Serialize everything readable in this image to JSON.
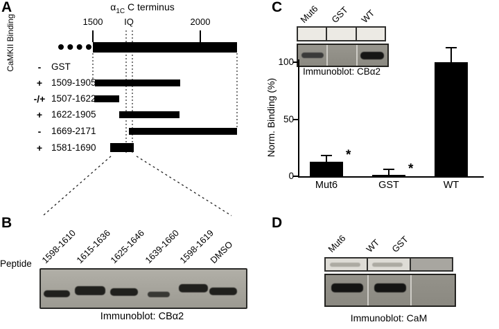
{
  "panelA": {
    "label": "A",
    "title": {
      "alpha": "α",
      "sub": "1C",
      "rest": " C terminus"
    },
    "side_label": "CaMKII Binding",
    "scale": {
      "left_tick": "1500",
      "iq_label": "IQ",
      "right_tick": "2000"
    },
    "constructs": [
      {
        "binding": "-",
        "name": "GST"
      },
      {
        "binding": "+",
        "name": "1509-1905",
        "start": 1509,
        "end": 1905
      },
      {
        "binding": "-/+",
        "name": "1507-1622",
        "start": 1507,
        "end": 1622
      },
      {
        "binding": "+",
        "name": "1622-1905",
        "start": 1622,
        "end": 1905
      },
      {
        "binding": "-",
        "name": "1669-2171",
        "start": 1669,
        "end": 2171
      },
      {
        "binding": "+",
        "name": "1581-1690",
        "start": 1581,
        "end": 1690
      }
    ]
  },
  "panelB": {
    "label": "B",
    "row_label": "Peptide",
    "lanes": [
      "1598-1610",
      "1615-1636",
      "1625-1646",
      "1639-1660",
      "1598-1619",
      "DMSO"
    ],
    "caption": "Immunoblot: CBα2"
  },
  "panelC": {
    "label": "C",
    "lanes": [
      "Mut6",
      "GST",
      "WT"
    ],
    "blot_caption": "Immunoblot: CBα2",
    "chart_data": {
      "type": "bar",
      "categories": [
        "Mut6",
        "GST",
        "WT"
      ],
      "values": [
        13,
        2,
        100
      ],
      "errors": [
        5,
        4,
        12
      ],
      "significance": [
        "*",
        "*",
        ""
      ],
      "ylabel": "Norm. Binding (%)",
      "yticks": [
        0,
        50,
        100
      ],
      "ylim": [
        0,
        125
      ]
    }
  },
  "panelD": {
    "label": "D",
    "lanes": [
      "Mut6",
      "WT",
      "GST"
    ],
    "caption": "Immunoblot: CaM"
  }
}
